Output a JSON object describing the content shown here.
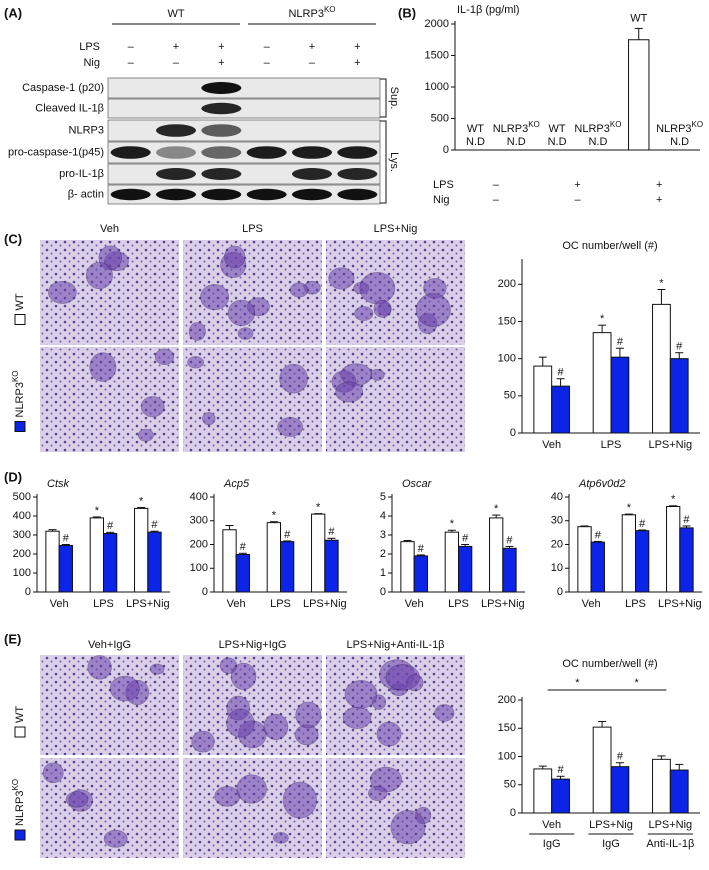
{
  "panel_labels": [
    "(A)",
    "(B)",
    "(C)",
    "(D)",
    "(E)"
  ],
  "blot": {
    "groups": [
      {
        "name": "WT"
      },
      {
        "name": "NLRP3",
        "superscript": "KO"
      }
    ],
    "treatments": [
      {
        "name": "LPS",
        "signs": [
          "–",
          "+",
          "+",
          "–",
          "+",
          "+"
        ]
      },
      {
        "name": "Nig",
        "signs": [
          "–",
          "–",
          "+",
          "–",
          "–",
          "+"
        ]
      }
    ],
    "rows": [
      "Caspase-1 (p20)",
      "Cleaved IL-1β",
      "NLRP3",
      "pro-caspase-1(p45)",
      "pro-IL-1β",
      "β- actin"
    ],
    "fractions": [
      "Sup.",
      "Lys."
    ]
  },
  "micrographs_c": {
    "columns": [
      "Veh",
      "LPS",
      "LPS+Nig"
    ]
  },
  "micrographs_e": {
    "columns": [
      "Veh+IgG",
      "LPS+Nig+IgG",
      "LPS+Nig+Anti-IL-1β"
    ]
  },
  "chart_data": [
    {
      "type": "bar",
      "y_label": "IL-1β (pg/ml)",
      "categories": [
        "WT",
        "NLRP3",
        "WT",
        "NLRP3",
        "WT",
        "NLRP3"
      ],
      "category_superscripts": [
        null,
        "KO",
        null,
        "KO",
        null,
        "KO"
      ],
      "values": [
        null,
        null,
        null,
        null,
        1750,
        null
      ],
      "errors": [
        null,
        null,
        null,
        null,
        180,
        null
      ],
      "value_labels": [
        "N.D",
        "N.D",
        "N.D",
        "N.D",
        null,
        "N.D"
      ],
      "color": "#ffffff",
      "ylim": [
        0,
        2000
      ],
      "yticks": [
        0,
        500,
        1000,
        1500,
        2000
      ],
      "treatments": [
        {
          "name": "LPS",
          "signs": [
            "–",
            "+",
            "+"
          ]
        },
        {
          "name": "Nig",
          "signs": [
            "–",
            "–",
            "+"
          ]
        }
      ]
    },
    {
      "type": "bar",
      "title": "OC number/well (#)",
      "categories": [
        "Veh",
        "LPS",
        "LPS+Nig"
      ],
      "series": [
        {
          "name": "WT",
          "color": "#ffffff",
          "values": [
            90,
            135,
            173
          ],
          "errors": [
            12,
            10,
            20
          ],
          "markers": [
            null,
            "*",
            "*"
          ]
        },
        {
          "name": "NLRP3",
          "superscript": "KO",
          "color": "#0b24e8",
          "values": [
            63,
            102,
            100
          ],
          "errors": [
            10,
            12,
            8
          ],
          "markers": [
            "#",
            "#",
            "#"
          ]
        }
      ],
      "ylim": [
        0,
        230
      ],
      "yticks": [
        0,
        50,
        100,
        150,
        200
      ]
    },
    {
      "type": "bar",
      "title": "Ctsk",
      "categories": [
        "Veh",
        "LPS",
        "LPS+Nig"
      ],
      "series": [
        {
          "color": "#ffffff",
          "values": [
            320,
            390,
            440
          ],
          "errors": [
            8,
            5,
            5
          ],
          "markers": [
            null,
            "*",
            "*"
          ]
        },
        {
          "color": "#0b24e8",
          "values": [
            245,
            308,
            315
          ],
          "errors": [
            5,
            6,
            5
          ],
          "markers": [
            "#",
            "#",
            "#"
          ]
        }
      ],
      "ylim": [
        0,
        500
      ],
      "yticks": [
        0,
        100,
        200,
        300,
        400,
        500
      ]
    },
    {
      "type": "bar",
      "title": "Acp5",
      "categories": [
        "Veh",
        "LPS",
        "LPS+Nig"
      ],
      "series": [
        {
          "color": "#ffffff",
          "values": [
            262,
            292,
            328
          ],
          "errors": [
            18,
            4,
            2
          ],
          "markers": [
            null,
            "*",
            "*"
          ]
        },
        {
          "color": "#0b24e8",
          "values": [
            158,
            212,
            218
          ],
          "errors": [
            5,
            3,
            8
          ],
          "markers": [
            "#",
            "#",
            "#"
          ]
        }
      ],
      "ylim": [
        0,
        400
      ],
      "yticks": [
        0,
        100,
        200,
        300,
        400
      ]
    },
    {
      "type": "bar",
      "title": "Oscar",
      "categories": [
        "Veh",
        "LPS",
        "LPS+Nig"
      ],
      "series": [
        {
          "color": "#ffffff",
          "values": [
            2.65,
            3.15,
            3.9
          ],
          "errors": [
            0.06,
            0.1,
            0.15
          ],
          "markers": [
            null,
            "*",
            "*"
          ]
        },
        {
          "color": "#0b24e8",
          "values": [
            1.9,
            2.4,
            2.3
          ],
          "errors": [
            0.05,
            0.1,
            0.1
          ],
          "markers": [
            "#",
            "#",
            "#"
          ]
        }
      ],
      "ylim": [
        0,
        5
      ],
      "yticks": [
        0,
        1,
        2,
        3,
        4,
        5
      ]
    },
    {
      "type": "bar",
      "title": "Atp6v0d2",
      "categories": [
        "Veh",
        "LPS",
        "LPS+Nig"
      ],
      "series": [
        {
          "color": "#ffffff",
          "values": [
            27.5,
            32.5,
            36
          ],
          "errors": [
            0.3,
            0.3,
            0.3
          ],
          "markers": [
            null,
            "*",
            "*"
          ]
        },
        {
          "color": "#0b24e8",
          "values": [
            21,
            25.8,
            27
          ],
          "errors": [
            0.3,
            0.3,
            0.8
          ],
          "markers": [
            "#",
            "#",
            "#"
          ]
        }
      ],
      "ylim": [
        0,
        40
      ],
      "yticks": [
        0,
        10,
        20,
        30,
        40
      ]
    },
    {
      "type": "bar",
      "title": "OC number/well (#)",
      "categories": [
        "Veh",
        "LPS+Nig",
        "LPS+Nig"
      ],
      "subcategories": [
        "IgG",
        "IgG",
        "Anti-IL-1β"
      ],
      "significance": [
        "*",
        "*"
      ],
      "series": [
        {
          "name": "WT",
          "color": "#ffffff",
          "values": [
            78,
            152,
            95
          ],
          "errors": [
            5,
            10,
            6
          ],
          "markers": [
            null,
            null,
            null
          ]
        },
        {
          "name": "NLRP3",
          "superscript": "KO",
          "color": "#0b24e8",
          "values": [
            60,
            82,
            76
          ],
          "errors": [
            5,
            7,
            10
          ],
          "markers": [
            "#",
            "#",
            null
          ]
        }
      ],
      "ylim": [
        0,
        200
      ],
      "yticks": [
        0,
        50,
        100,
        150,
        200
      ]
    }
  ]
}
